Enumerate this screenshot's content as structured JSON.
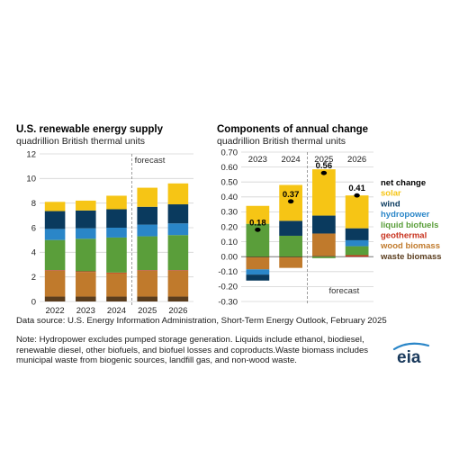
{
  "chart_data": [
    {
      "type": "bar",
      "stacked": true,
      "title": "U.S. renewable energy supply",
      "subtitle": "quadrillion British thermal units",
      "categories": [
        "2022",
        "2023",
        "2024",
        "2025",
        "2026"
      ],
      "ylim": [
        0,
        12
      ],
      "yticks": [
        "0",
        "2",
        "4",
        "6",
        "8",
        "10",
        "12"
      ],
      "annotation": "forecast",
      "series": [
        {
          "key": "waste",
          "values": [
            0.4,
            0.4,
            0.4,
            0.4,
            0.4
          ]
        },
        {
          "key": "wood",
          "values": [
            2.1,
            2.0,
            1.9,
            2.1,
            2.1
          ]
        },
        {
          "key": "geo",
          "values": [
            0.05,
            0.05,
            0.05,
            0.05,
            0.05
          ]
        },
        {
          "key": "liquid",
          "values": [
            2.45,
            2.65,
            2.85,
            2.75,
            2.85
          ]
        },
        {
          "key": "hydro",
          "values": [
            0.9,
            0.85,
            0.8,
            0.95,
            0.95
          ]
        },
        {
          "key": "wind",
          "values": [
            1.45,
            1.45,
            1.5,
            1.45,
            1.55
          ]
        },
        {
          "key": "solar",
          "values": [
            0.75,
            0.8,
            1.1,
            1.55,
            1.7
          ]
        }
      ]
    },
    {
      "type": "bar",
      "stacked": true,
      "title": "Components of annual change",
      "subtitle": "quadrillion British thermal units",
      "categories": [
        "2023",
        "2024",
        "2025",
        "2026"
      ],
      "ylim": [
        -0.3,
        0.7
      ],
      "yticks": [
        "-0.30",
        "-0.20",
        "-0.10",
        "0.00",
        "0.10",
        "0.20",
        "0.30",
        "0.40",
        "0.50",
        "0.60",
        "0.70"
      ],
      "annotation": "forecast",
      "net_change": [
        0.18,
        0.37,
        0.56,
        0.41
      ],
      "net_change_labels": [
        "0.18",
        "0.37",
        "0.56",
        "0.41"
      ],
      "series": [
        {
          "key": "waste",
          "values": [
            -0.005,
            -0.005,
            0.005,
            0.0
          ]
        },
        {
          "key": "wood",
          "values": [
            -0.08,
            -0.07,
            0.15,
            0.0
          ]
        },
        {
          "key": "geo",
          "values": [
            0.0,
            0.0,
            0.0,
            0.01
          ]
        },
        {
          "key": "liquid",
          "values": [
            0.22,
            0.14,
            -0.01,
            0.06
          ]
        },
        {
          "key": "hydro",
          "values": [
            -0.035,
            0.0,
            0.0,
            0.04
          ]
        },
        {
          "key": "wind",
          "values": [
            -0.04,
            0.1,
            0.12,
            0.08
          ]
        },
        {
          "key": "solar",
          "values": [
            0.12,
            0.24,
            0.31,
            0.22
          ]
        }
      ]
    }
  ],
  "legend": [
    {
      "key": "net",
      "label": "net change",
      "color": "#000000"
    },
    {
      "key": "solar",
      "label": "solar",
      "color": "#f6c515"
    },
    {
      "key": "wind",
      "label": "wind",
      "color": "#0a3a5e"
    },
    {
      "key": "hydro",
      "label": "hydropower",
      "color": "#2a86c8"
    },
    {
      "key": "liquid",
      "label": "liquid biofuels",
      "color": "#5a9e3a"
    },
    {
      "key": "geo",
      "label": "geothermal",
      "color": "#c8321e"
    },
    {
      "key": "wood",
      "label": "wood biomass",
      "color": "#c07a2c"
    },
    {
      "key": "waste",
      "label": "waste biomass",
      "color": "#5a3d1e"
    }
  ],
  "footer": {
    "source": "Data source: U.S. Energy Information Administration, Short-Term Energy Outlook, February 2025",
    "note": "Note: Hydropower excludes pumped storage generation. Liquids include ethanol, biodiesel, renewable diesel, other biofuels, and biofuel losses and coproducts.Waste biomass includes municipal waste from biogenic sources, landfill gas, and non-wood waste.",
    "logo_text": "eia"
  }
}
